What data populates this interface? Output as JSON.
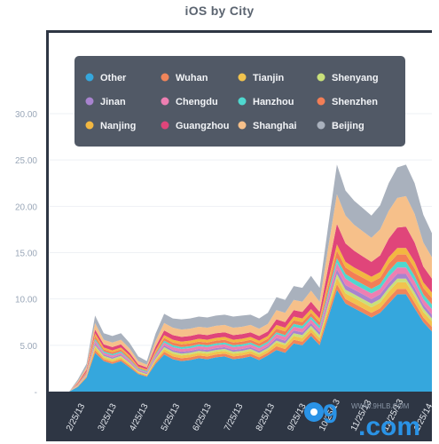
{
  "chart_data": {
    "type": "area",
    "stacked": true,
    "title": "iOS by City",
    "xlabel": "",
    "ylabel": "",
    "ylim": [
      0,
      30
    ],
    "y_ticks": [
      "-",
      "5.00",
      "10.00",
      "15.00",
      "20.00",
      "25.00",
      "30.00"
    ],
    "x_tick_labels": [
      "2/25/13",
      "3/25/13",
      "4/25/13",
      "5/25/13",
      "6/25/13",
      "7/25/13",
      "8/25/13",
      "9/25/13",
      "10/25/13",
      "11/25/13",
      "12/25/13",
      "1/25/14"
    ],
    "grid": true,
    "legend_position": "top",
    "x": [
      0,
      1,
      2,
      3,
      4,
      5,
      6,
      7,
      8,
      9,
      10,
      11,
      12,
      13,
      14,
      15,
      16,
      17,
      18,
      19,
      20,
      21,
      22,
      23,
      24,
      25,
      26,
      27,
      28,
      29,
      30,
      31,
      32,
      33,
      34,
      35,
      36,
      37,
      38,
      39,
      40,
      41,
      42
    ],
    "series": [
      {
        "name": "Other",
        "color": "#35a7dd",
        "values": [
          0,
          0.5,
          1.5,
          4.2,
          3.3,
          3.0,
          3.3,
          2.6,
          1.9,
          1.6,
          3.0,
          4.0,
          3.5,
          3.3,
          3.4,
          3.6,
          3.5,
          3.7,
          3.8,
          3.5,
          3.6,
          3.8,
          3.4,
          3.9,
          4.5,
          4.2,
          5.2,
          5.0,
          6.0,
          5.0,
          8.0,
          11.0,
          9.5,
          9.0,
          8.5,
          8.0,
          8.5,
          9.5,
          10.5,
          10.5,
          9.0,
          7.5,
          6.5
        ]
      },
      {
        "name": "Wuhan",
        "color": "#f0855a",
        "values": [
          0,
          0.05,
          0.1,
          0.3,
          0.2,
          0.2,
          0.2,
          0.2,
          0.1,
          0.1,
          0.2,
          0.3,
          0.3,
          0.3,
          0.3,
          0.3,
          0.3,
          0.3,
          0.3,
          0.3,
          0.3,
          0.3,
          0.3,
          0.3,
          0.4,
          0.4,
          0.4,
          0.4,
          0.4,
          0.4,
          0.5,
          0.6,
          0.5,
          0.5,
          0.5,
          0.5,
          0.5,
          0.6,
          0.6,
          0.6,
          0.6,
          0.5,
          0.5
        ]
      },
      {
        "name": "Tianjin",
        "color": "#f1c34e",
        "values": [
          0,
          0.05,
          0.1,
          0.3,
          0.2,
          0.2,
          0.2,
          0.2,
          0.1,
          0.1,
          0.2,
          0.3,
          0.3,
          0.3,
          0.3,
          0.3,
          0.3,
          0.3,
          0.3,
          0.3,
          0.3,
          0.3,
          0.3,
          0.3,
          0.4,
          0.4,
          0.4,
          0.4,
          0.4,
          0.4,
          0.6,
          0.7,
          0.6,
          0.6,
          0.6,
          0.6,
          0.6,
          0.7,
          0.7,
          0.7,
          0.7,
          0.6,
          0.6
        ]
      },
      {
        "name": "Shenyang",
        "color": "#c9e07a",
        "values": [
          0,
          0.03,
          0.05,
          0.2,
          0.15,
          0.15,
          0.15,
          0.1,
          0.1,
          0.1,
          0.15,
          0.2,
          0.2,
          0.2,
          0.2,
          0.2,
          0.2,
          0.2,
          0.2,
          0.2,
          0.2,
          0.2,
          0.2,
          0.2,
          0.2,
          0.2,
          0.3,
          0.3,
          0.3,
          0.3,
          0.3,
          0.4,
          0.4,
          0.4,
          0.4,
          0.4,
          0.4,
          0.4,
          0.4,
          0.4,
          0.4,
          0.4,
          0.3
        ]
      },
      {
        "name": "Jinan",
        "color": "#a883cf",
        "values": [
          0,
          0.03,
          0.05,
          0.2,
          0.15,
          0.15,
          0.15,
          0.1,
          0.1,
          0.1,
          0.15,
          0.2,
          0.2,
          0.2,
          0.2,
          0.2,
          0.2,
          0.2,
          0.2,
          0.2,
          0.2,
          0.2,
          0.2,
          0.2,
          0.3,
          0.3,
          0.3,
          0.3,
          0.3,
          0.3,
          0.4,
          0.5,
          0.5,
          0.5,
          0.5,
          0.5,
          0.5,
          0.5,
          0.5,
          0.5,
          0.5,
          0.4,
          0.4
        ]
      },
      {
        "name": "Chengdu",
        "color": "#ee7fb2",
        "values": [
          0,
          0.05,
          0.1,
          0.3,
          0.2,
          0.2,
          0.2,
          0.2,
          0.1,
          0.1,
          0.2,
          0.3,
          0.3,
          0.3,
          0.3,
          0.3,
          0.3,
          0.3,
          0.3,
          0.3,
          0.3,
          0.3,
          0.3,
          0.3,
          0.4,
          0.4,
          0.4,
          0.4,
          0.4,
          0.4,
          0.6,
          0.7,
          0.7,
          0.6,
          0.6,
          0.6,
          0.6,
          0.7,
          0.7,
          0.7,
          0.7,
          0.6,
          0.6
        ]
      },
      {
        "name": "Hanzhou",
        "color": "#4fd8cf",
        "values": [
          0,
          0.03,
          0.05,
          0.2,
          0.15,
          0.15,
          0.15,
          0.1,
          0.1,
          0.1,
          0.15,
          0.2,
          0.2,
          0.2,
          0.2,
          0.2,
          0.2,
          0.2,
          0.2,
          0.2,
          0.2,
          0.2,
          0.2,
          0.2,
          0.2,
          0.2,
          0.3,
          0.3,
          0.3,
          0.3,
          0.4,
          0.5,
          0.5,
          0.5,
          0.5,
          0.5,
          0.5,
          0.6,
          0.6,
          0.6,
          0.6,
          0.5,
          0.5
        ]
      },
      {
        "name": "Shenzhen",
        "color": "#f37e56",
        "values": [
          0,
          0.05,
          0.1,
          0.3,
          0.2,
          0.2,
          0.2,
          0.2,
          0.1,
          0.1,
          0.2,
          0.3,
          0.3,
          0.3,
          0.3,
          0.3,
          0.3,
          0.3,
          0.3,
          0.3,
          0.3,
          0.3,
          0.3,
          0.3,
          0.4,
          0.4,
          0.4,
          0.4,
          0.4,
          0.4,
          0.6,
          0.8,
          0.7,
          0.7,
          0.7,
          0.7,
          0.7,
          0.8,
          0.8,
          0.8,
          0.8,
          0.7,
          0.7
        ]
      },
      {
        "name": "Nanjing",
        "color": "#f2b741",
        "values": [
          0,
          0.05,
          0.1,
          0.3,
          0.2,
          0.2,
          0.2,
          0.2,
          0.1,
          0.1,
          0.2,
          0.3,
          0.3,
          0.3,
          0.3,
          0.3,
          0.3,
          0.3,
          0.3,
          0.3,
          0.3,
          0.3,
          0.3,
          0.3,
          0.4,
          0.4,
          0.4,
          0.4,
          0.4,
          0.4,
          0.6,
          0.7,
          0.6,
          0.6,
          0.6,
          0.6,
          0.6,
          0.7,
          0.7,
          0.7,
          0.7,
          0.6,
          0.6
        ]
      },
      {
        "name": "Guangzhou",
        "color": "#e0457a",
        "values": [
          0,
          0.1,
          0.2,
          0.4,
          0.35,
          0.35,
          0.35,
          0.3,
          0.25,
          0.2,
          0.4,
          0.5,
          0.5,
          0.5,
          0.5,
          0.5,
          0.5,
          0.5,
          0.5,
          0.5,
          0.5,
          0.5,
          0.5,
          0.5,
          0.6,
          0.6,
          0.7,
          0.7,
          0.8,
          0.7,
          1.4,
          2.2,
          2.0,
          1.8,
          1.7,
          1.6,
          1.8,
          2.0,
          2.2,
          2.3,
          2.1,
          1.7,
          1.5
        ]
      },
      {
        "name": "Shanghai",
        "color": "#f6c08a",
        "values": [
          0,
          0.15,
          0.3,
          0.7,
          0.5,
          0.5,
          0.5,
          0.45,
          0.35,
          0.3,
          0.6,
          0.8,
          0.8,
          0.8,
          0.8,
          0.8,
          0.8,
          0.8,
          0.8,
          0.8,
          0.8,
          0.8,
          0.8,
          0.8,
          1.0,
          1.0,
          1.1,
          1.1,
          1.2,
          1.1,
          2.2,
          3.2,
          3.0,
          2.8,
          2.7,
          2.6,
          2.8,
          3.0,
          3.2,
          3.3,
          3.1,
          2.6,
          2.3
        ]
      },
      {
        "name": "Beijing",
        "color": "#a9b1bd",
        "values": [
          0,
          0.2,
          0.35,
          0.8,
          0.7,
          0.7,
          0.7,
          0.6,
          0.5,
          0.4,
          0.8,
          1.0,
          1.0,
          1.1,
          1.1,
          1.1,
          1.1,
          1.1,
          1.1,
          1.2,
          1.2,
          1.1,
          1.1,
          1.2,
          1.4,
          1.4,
          1.5,
          1.5,
          1.6,
          1.5,
          2.3,
          3.2,
          2.7,
          2.6,
          2.5,
          2.4,
          2.6,
          3.0,
          3.3,
          3.4,
          3.3,
          3.0,
          2.6
        ]
      }
    ],
    "legend_order": [
      "Other",
      "Wuhan",
      "Tianjin",
      "Shenyang",
      "Jinan",
      "Chengdu",
      "Hanzhou",
      "Shenzhen",
      "Nanjing",
      "Guangzhou",
      "Shanghai",
      "Beijing"
    ]
  },
  "colors": {
    "plot_background": "#2e3644",
    "legend_background": "#4a5260",
    "grid": "#eef1f5"
  },
  "watermark": {
    "brand": "9",
    "domain": ".com",
    "small_text": "WWW.9HLB.COM"
  }
}
